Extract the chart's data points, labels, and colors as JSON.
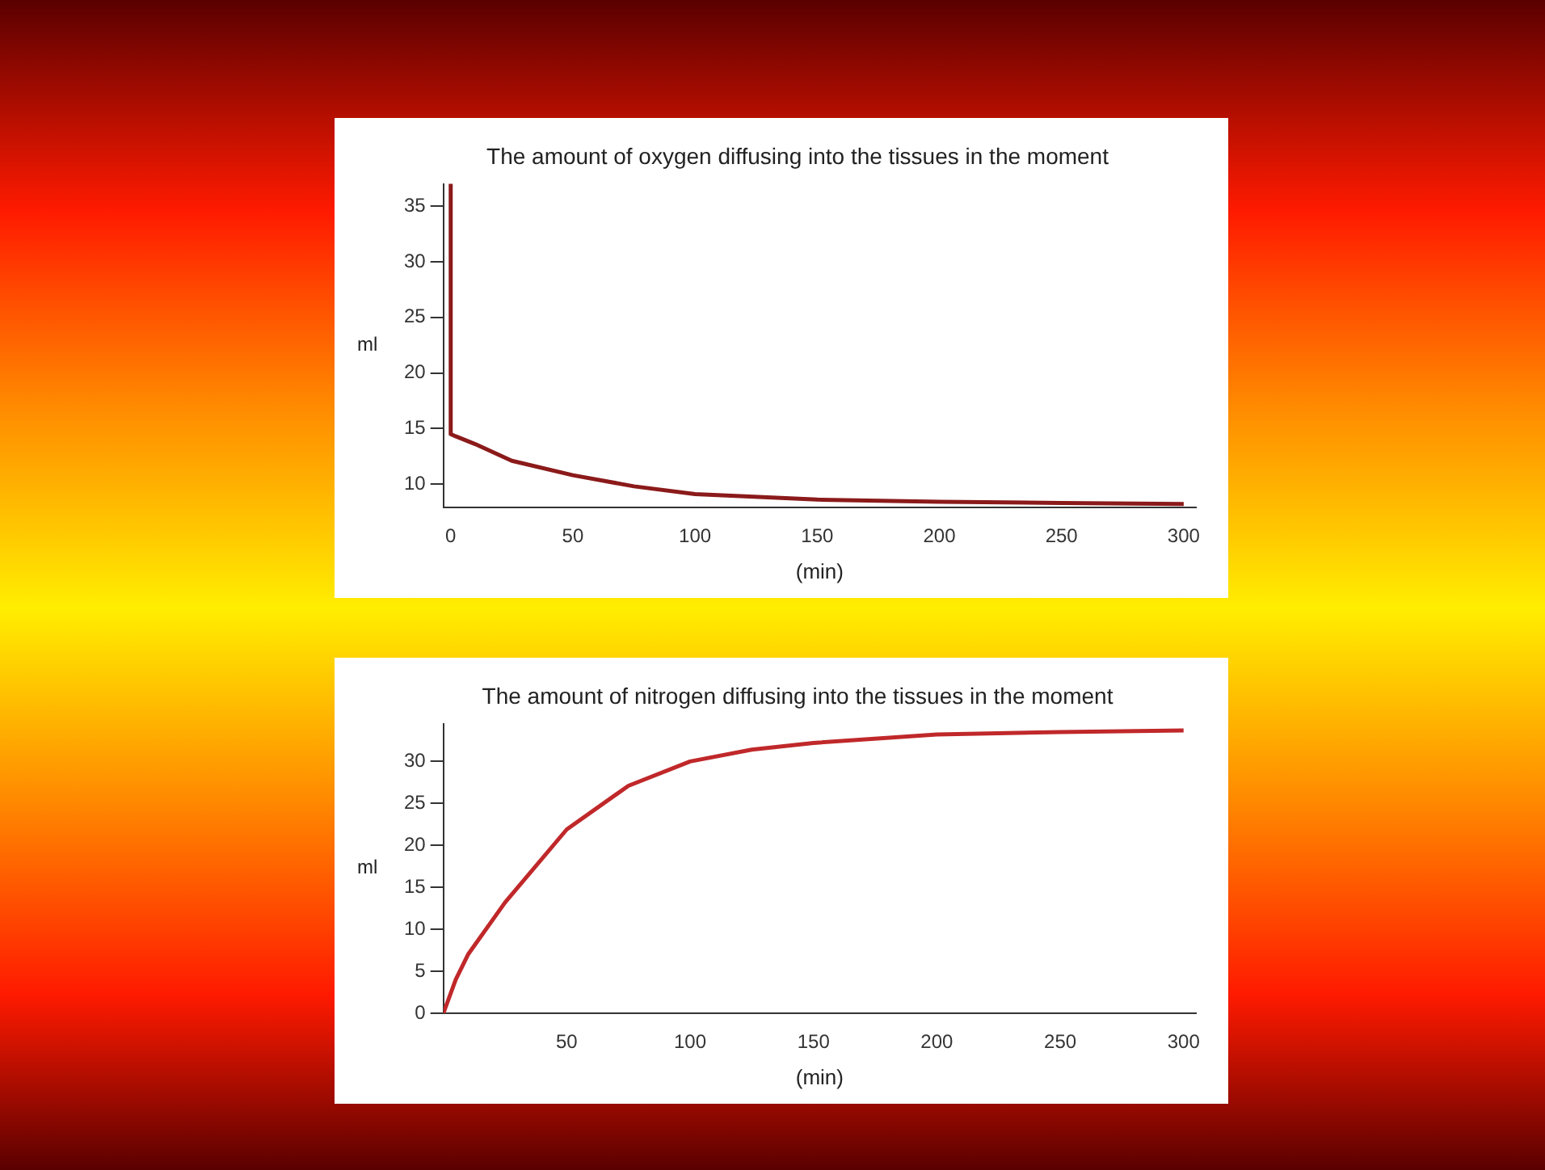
{
  "chart_data": [
    {
      "type": "line",
      "title": "The amount of oxygen diffusing into the tissues in the moment",
      "xlabel": "(min)",
      "ylabel": "ml",
      "x": [
        0,
        0,
        2,
        10,
        25,
        50,
        75,
        100,
        150,
        200,
        250,
        300
      ],
      "series": [
        {
          "color": "#8b1a1a",
          "values": [
            37,
            14.5,
            14.3,
            13.6,
            12.1,
            10.8,
            9.8,
            9.1,
            8.6,
            8.4,
            8.3,
            8.2
          ]
        }
      ],
      "xlim": [
        -3,
        305
      ],
      "ylim": [
        7.9,
        37
      ],
      "xticks": [
        0,
        50,
        100,
        150,
        200,
        250,
        300
      ],
      "yticks": [
        10,
        15,
        20,
        25,
        30,
        35
      ],
      "grid": false,
      "legend": false,
      "marker": "none",
      "line_style": "solid"
    },
    {
      "type": "line",
      "title": "The amount of nitrogen diffusing into the tissues in the moment",
      "xlabel": "(min)",
      "ylabel": "ml",
      "x": [
        0,
        5,
        10,
        25,
        50,
        75,
        100,
        125,
        150,
        200,
        250,
        300
      ],
      "series": [
        {
          "color": "#c0282a",
          "values": [
            0,
            4,
            7,
            13.2,
            21.9,
            27.1,
            30,
            31.4,
            32.2,
            33.2,
            33.5,
            33.7
          ]
        }
      ],
      "xlim": [
        0,
        305
      ],
      "ylim": [
        0,
        34.5
      ],
      "xticks": [
        50,
        100,
        150,
        200,
        250,
        300
      ],
      "yticks": [
        0,
        5,
        10,
        15,
        20,
        25,
        30
      ],
      "grid": false,
      "legend": false,
      "marker": "none",
      "line_style": "solid"
    }
  ]
}
